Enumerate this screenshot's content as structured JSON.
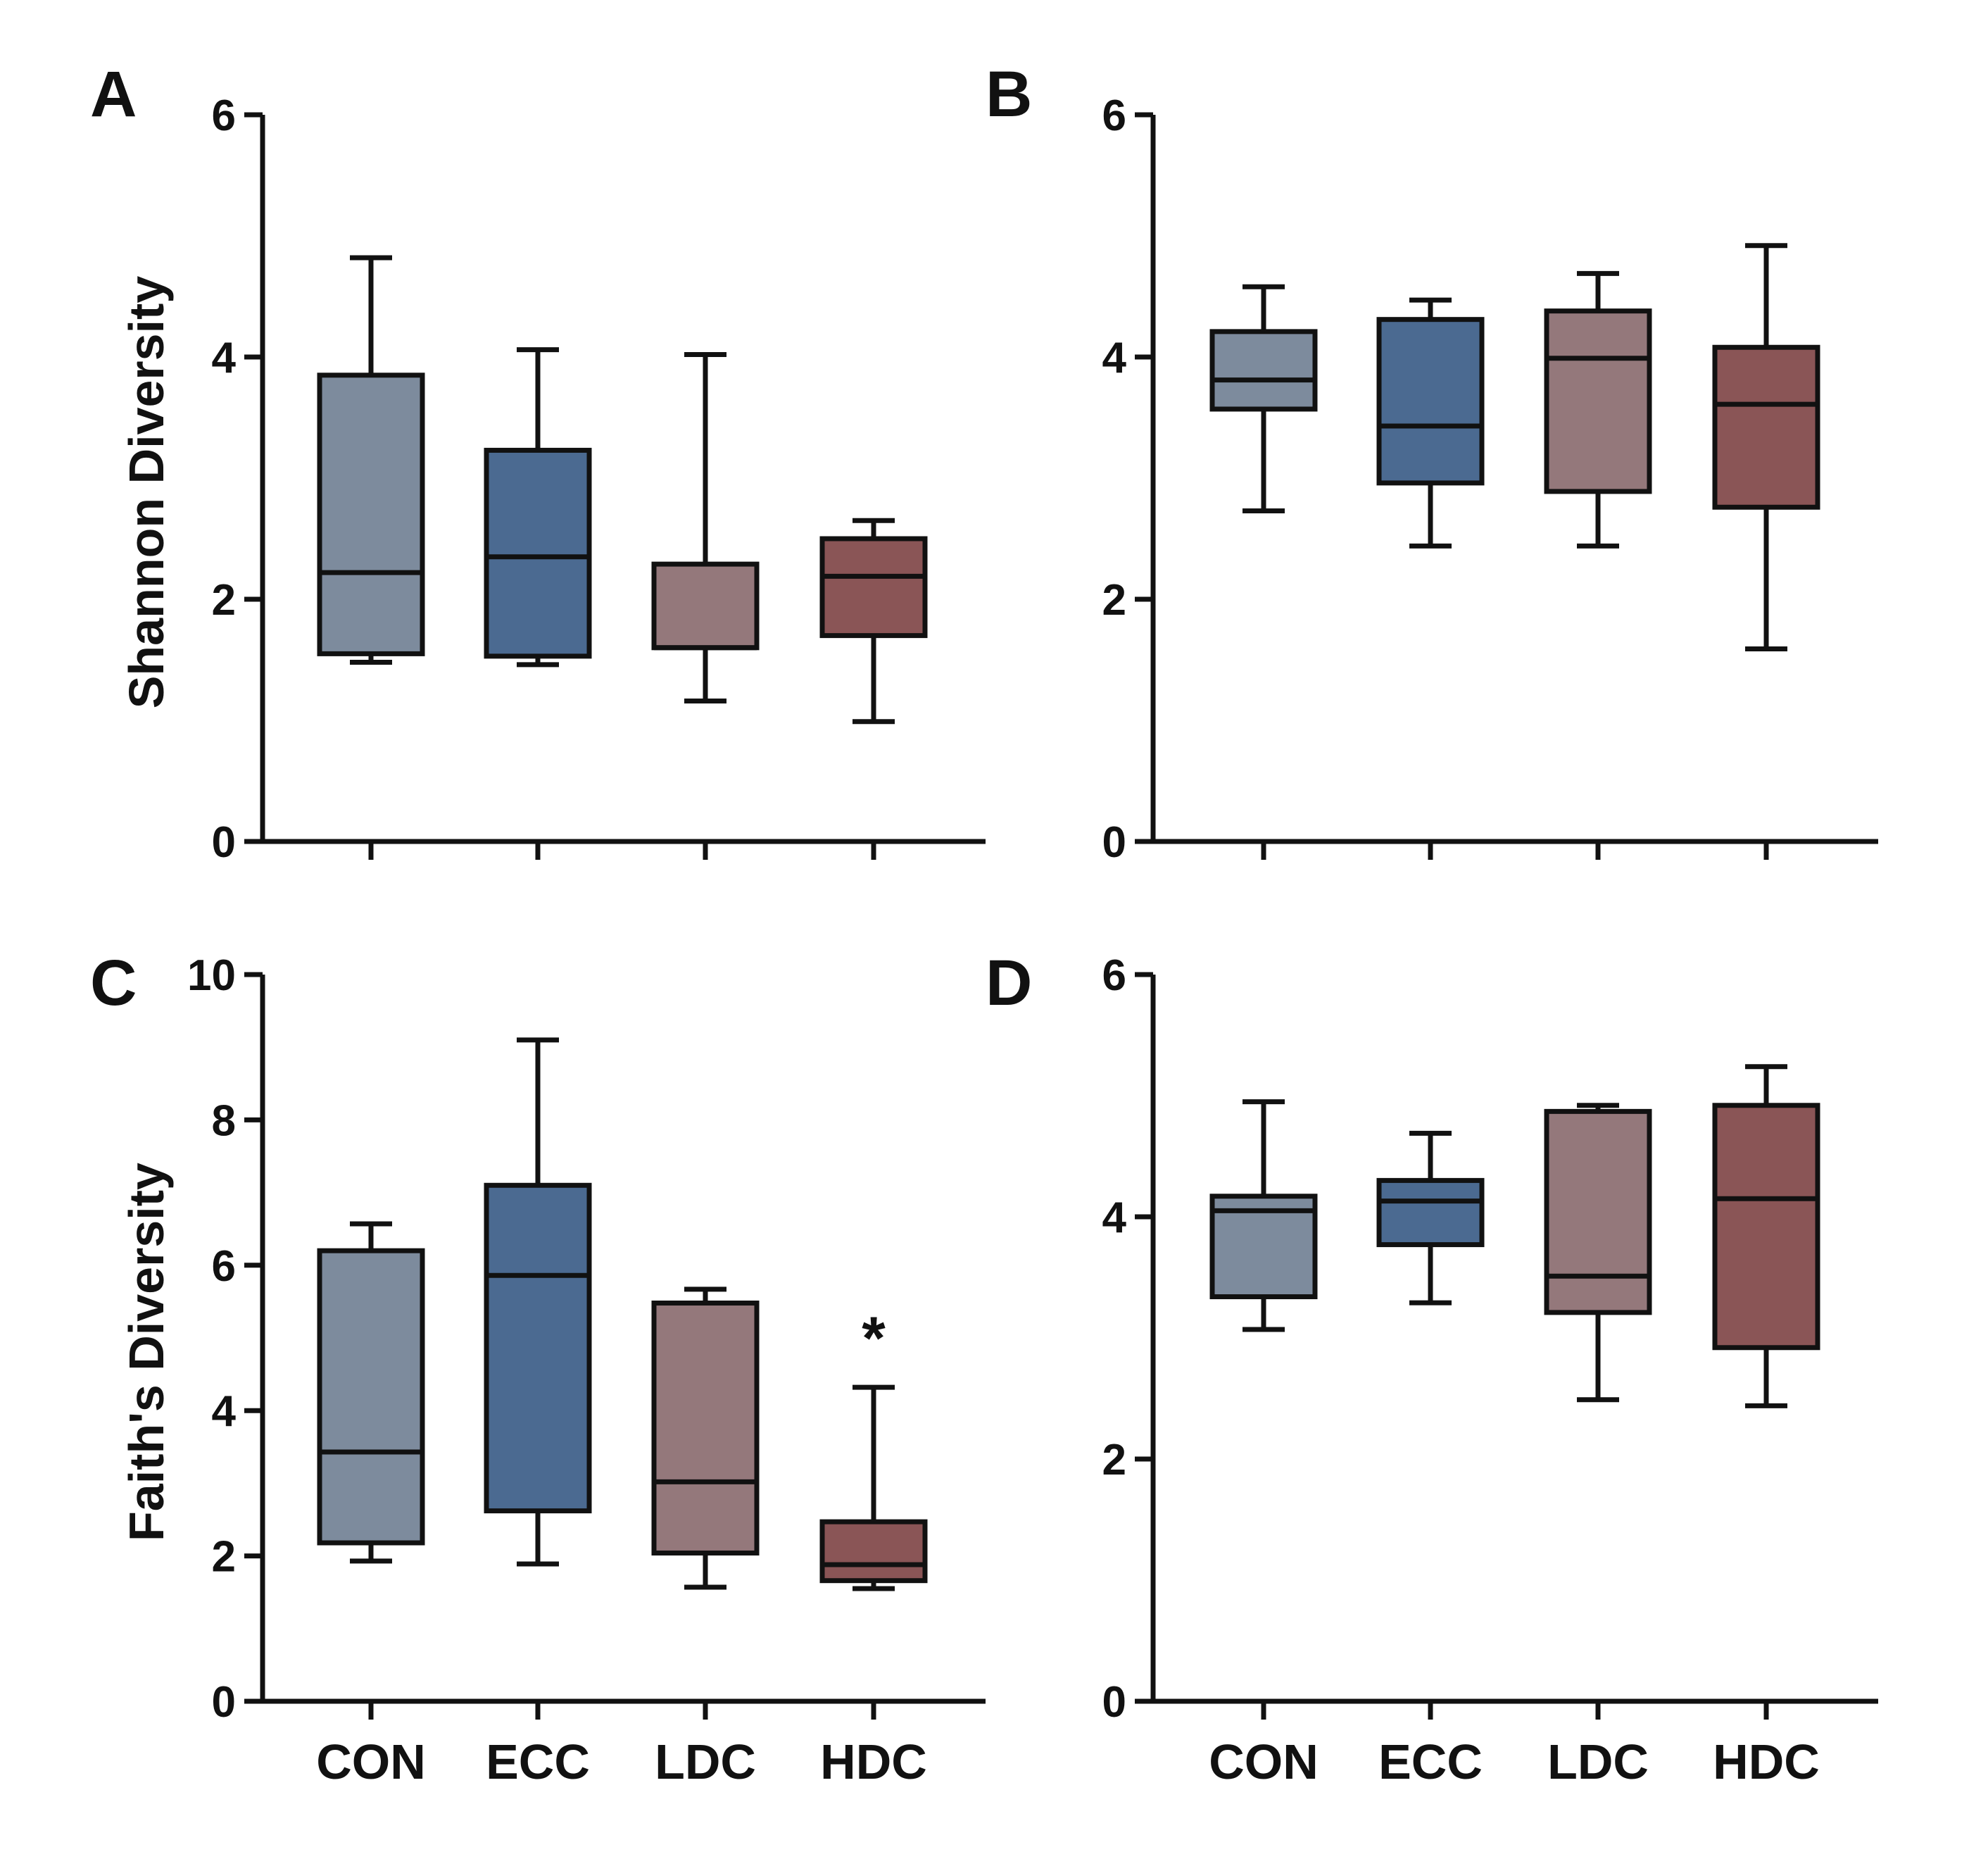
{
  "figure": {
    "categories": [
      "CON",
      "ECC",
      "LDC",
      "HDC"
    ],
    "colors": {
      "CON": "#7d8b9d",
      "ECC": "#4b6a91",
      "LDC": "#94787b",
      "HDC": "#8a5556",
      "stroke": "#111111"
    }
  },
  "chart_data": [
    {
      "panel": "A",
      "type": "box",
      "ylabel": "Shannon Diversity",
      "ylim": [
        0,
        6
      ],
      "yticks": [
        "0",
        "2",
        "4",
        "6"
      ],
      "show_category_labels": false,
      "series": [
        {
          "category": "CON",
          "whisker_low": 1.48,
          "q1": 1.55,
          "median": 2.22,
          "q3": 3.85,
          "whisker_high": 4.82
        },
        {
          "category": "ECC",
          "whisker_low": 1.46,
          "q1": 1.53,
          "median": 2.35,
          "q3": 3.23,
          "whisker_high": 4.06
        },
        {
          "category": "LDC",
          "whisker_low": 1.16,
          "q1": 1.6,
          "median": 1.6,
          "q3": 2.29,
          "whisker_high": 4.02
        },
        {
          "category": "HDC",
          "whisker_low": 0.99,
          "q1": 1.7,
          "median": 2.19,
          "q3": 2.5,
          "whisker_high": 2.65
        }
      ]
    },
    {
      "panel": "B",
      "type": "box",
      "ylabel": "",
      "ylim": [
        0,
        6
      ],
      "yticks": [
        "0",
        "2",
        "4",
        "6"
      ],
      "show_category_labels": false,
      "series": [
        {
          "category": "CON",
          "whisker_low": 2.73,
          "q1": 3.57,
          "median": 3.81,
          "q3": 4.21,
          "whisker_high": 4.58
        },
        {
          "category": "ECC",
          "whisker_low": 2.44,
          "q1": 2.96,
          "median": 3.43,
          "q3": 4.31,
          "whisker_high": 4.47
        },
        {
          "category": "LDC",
          "whisker_low": 2.44,
          "q1": 2.89,
          "median": 3.99,
          "q3": 4.38,
          "whisker_high": 4.69
        },
        {
          "category": "HDC",
          "whisker_low": 1.59,
          "q1": 2.76,
          "median": 3.61,
          "q3": 4.08,
          "whisker_high": 4.92
        }
      ]
    },
    {
      "panel": "C",
      "type": "box",
      "ylabel": "Faith's Diversity",
      "ylim": [
        0,
        10
      ],
      "yticks": [
        "0",
        "2",
        "4",
        "6",
        "8",
        "10"
      ],
      "show_category_labels": true,
      "annotations": [
        {
          "category": "HDC",
          "text": "*"
        }
      ],
      "series": [
        {
          "category": "CON",
          "whisker_low": 1.93,
          "q1": 2.18,
          "median": 3.43,
          "q3": 6.2,
          "whisker_high": 6.57
        },
        {
          "category": "ECC",
          "whisker_low": 1.89,
          "q1": 2.62,
          "median": 5.86,
          "q3": 7.1,
          "whisker_high": 9.1
        },
        {
          "category": "LDC",
          "whisker_low": 1.57,
          "q1": 2.04,
          "median": 3.02,
          "q3": 5.48,
          "whisker_high": 5.67
        },
        {
          "category": "HDC",
          "whisker_low": 1.55,
          "q1": 1.66,
          "median": 1.88,
          "q3": 2.47,
          "whisker_high": 4.32
        }
      ]
    },
    {
      "panel": "D",
      "type": "box",
      "ylabel": "",
      "ylim": [
        0,
        6
      ],
      "yticks": [
        "0",
        "2",
        "4",
        "6"
      ],
      "show_category_labels": true,
      "series": [
        {
          "category": "CON",
          "whisker_low": 3.07,
          "q1": 3.34,
          "median": 4.05,
          "q3": 4.17,
          "whisker_high": 4.95
        },
        {
          "category": "ECC",
          "whisker_low": 3.29,
          "q1": 3.77,
          "median": 4.13,
          "q3": 4.3,
          "whisker_high": 4.69
        },
        {
          "category": "LDC",
          "whisker_low": 2.49,
          "q1": 3.21,
          "median": 3.51,
          "q3": 4.87,
          "whisker_high": 4.92
        },
        {
          "category": "HDC",
          "whisker_low": 2.44,
          "q1": 2.92,
          "median": 4.15,
          "q3": 4.92,
          "whisker_high": 5.24
        }
      ]
    }
  ]
}
